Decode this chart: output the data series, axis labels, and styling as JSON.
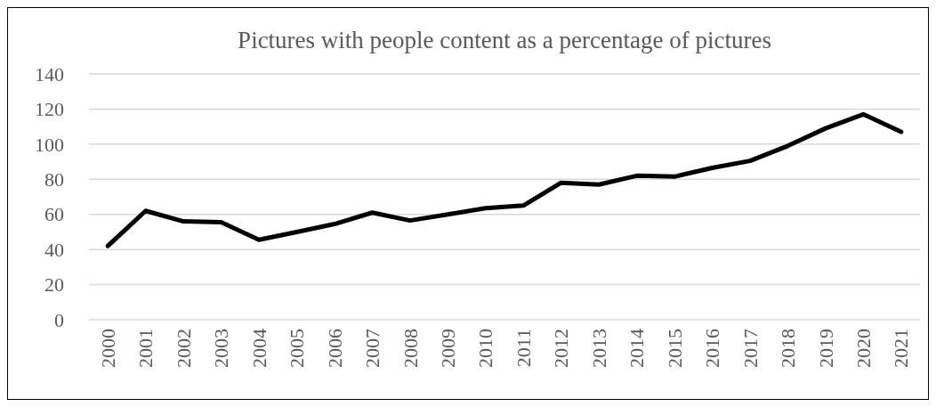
{
  "chart_data": {
    "type": "line",
    "title": "Pictures with people content as a percentage of pictures",
    "categories": [
      "2000",
      "2001",
      "2002",
      "2003",
      "2004",
      "2005",
      "2006",
      "2007",
      "2008",
      "2009",
      "2010",
      "2011",
      "2012",
      "2013",
      "2014",
      "2015",
      "2016",
      "2017",
      "2018",
      "2019",
      "2020",
      "2021"
    ],
    "series": [
      {
        "color": "#000000",
        "values": [
          42,
          62,
          56,
          55.5,
          45.5,
          50,
          54.5,
          61,
          56.5,
          60,
          63.5,
          65,
          78,
          77,
          82,
          81.5,
          86.5,
          90.5,
          99,
          109,
          117,
          107
        ]
      }
    ],
    "ylim": [
      0,
      140
    ],
    "yticks": [
      0,
      20,
      40,
      60,
      80,
      100,
      120,
      140
    ],
    "grid": "y",
    "marker": "none",
    "line_style": "solid"
  }
}
